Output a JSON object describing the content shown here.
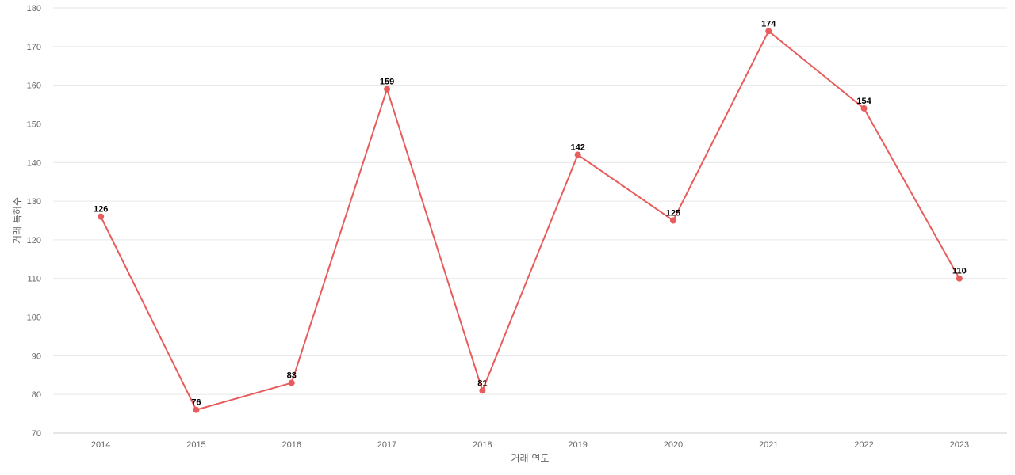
{
  "chart_data": {
    "type": "line",
    "title": "",
    "xlabel": "거래 연도",
    "ylabel": "거래 특허수",
    "categories": [
      "2014",
      "2015",
      "2016",
      "2017",
      "2018",
      "2019",
      "2020",
      "2021",
      "2022",
      "2023"
    ],
    "series": [
      {
        "values": [
          126,
          76,
          83,
          159,
          81,
          142,
          125,
          174,
          154,
          110
        ]
      }
    ],
    "ylim": [
      70,
      180
    ],
    "yticks": [
      70,
      80,
      90,
      100,
      110,
      120,
      130,
      140,
      150,
      160,
      170,
      180
    ],
    "grid": true,
    "data_labels": true,
    "line_color": "#e85c5c"
  }
}
